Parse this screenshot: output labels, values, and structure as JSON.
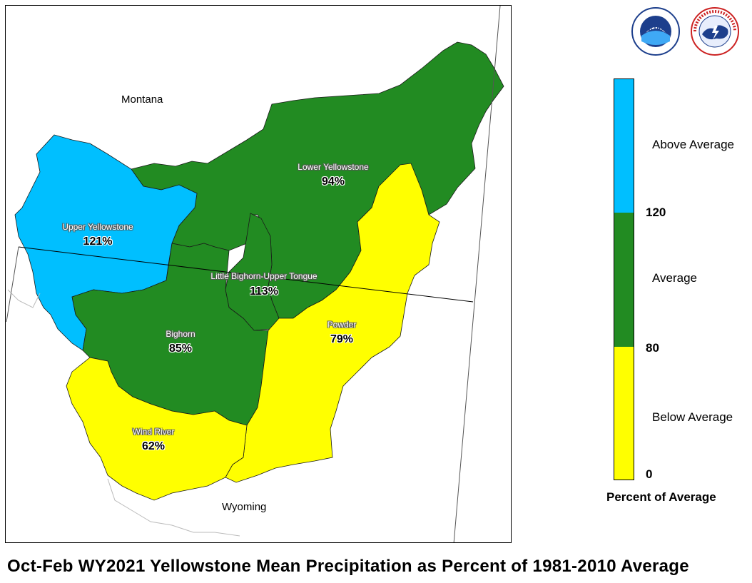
{
  "map": {
    "states": {
      "montana": "Montana",
      "wyoming": "Wyoming"
    },
    "basins": [
      {
        "name": "Upper Yellowstone",
        "percent": "121%",
        "category": "Above Average"
      },
      {
        "name": "Lower Yellowstone",
        "percent": "94%",
        "category": "Average"
      },
      {
        "name": "Little Bighorn-Upper Tongue",
        "percent": "113%",
        "category": "Average"
      },
      {
        "name": "Bighorn",
        "percent": "85%",
        "category": "Average"
      },
      {
        "name": "Powder",
        "percent": "79%",
        "category": "Below Average"
      },
      {
        "name": "Wind River",
        "percent": "62%",
        "category": "Below Average"
      }
    ]
  },
  "legend": {
    "title": "Percent of Average",
    "categories": [
      {
        "label": "Above Average",
        "color": "#00bfff"
      },
      {
        "label": "Average",
        "color": "#228b22"
      },
      {
        "label": "Below Average",
        "color": "#ffff00"
      }
    ],
    "ticks": [
      "120",
      "80",
      "0"
    ]
  },
  "logos": [
    {
      "name": "NOAA",
      "icon": "noaa-logo"
    },
    {
      "name": "NATIONAL WEATHER SERVICE",
      "icon": "nws-logo"
    }
  ],
  "title": "Oct-Feb WY2021 Yellowstone Mean Precipitation as Percent of 1981-2010 Average"
}
